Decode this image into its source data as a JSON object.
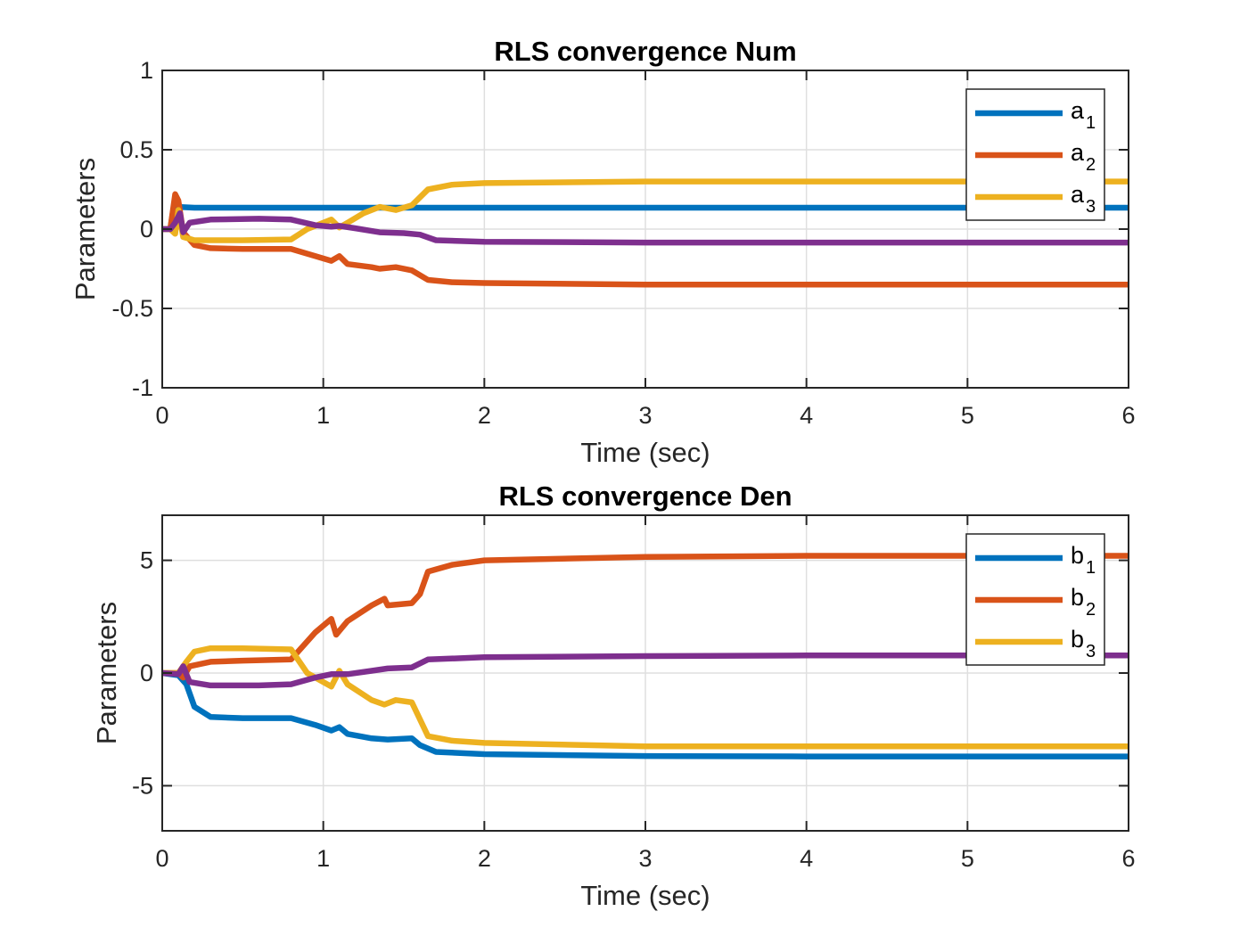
{
  "chart_data": [
    {
      "type": "line",
      "title": "RLS convergence Num",
      "xlabel": "Time (sec)",
      "ylabel": "Parameters",
      "xlim": [
        0,
        6
      ],
      "ylim": [
        -1,
        1
      ],
      "xticks": [
        "0",
        "1",
        "2",
        "3",
        "4",
        "5",
        "6"
      ],
      "yticks": [
        "-1",
        "-0.5",
        "0",
        "0.5",
        "1"
      ],
      "grid": true,
      "legend_position": "top-right",
      "series": [
        {
          "name": "a1",
          "legend_base": "a",
          "legend_sub": "1",
          "color": "#0072BD",
          "points": [
            [
              0,
              0
            ],
            [
              0.05,
              0
            ],
            [
              0.07,
              0.13
            ],
            [
              0.1,
              0.14
            ],
            [
              0.2,
              0.135
            ],
            [
              0.5,
              0.135
            ],
            [
              1,
              0.135
            ],
            [
              2,
              0.135
            ],
            [
              3,
              0.135
            ],
            [
              4,
              0.135
            ],
            [
              5,
              0.135
            ],
            [
              6,
              0.135
            ]
          ]
        },
        {
          "name": "a2",
          "legend_base": "a",
          "legend_sub": "2",
          "color": "#D95319",
          "points": [
            [
              0,
              0
            ],
            [
              0.05,
              0
            ],
            [
              0.08,
              0.22
            ],
            [
              0.1,
              0.18
            ],
            [
              0.13,
              -0.02
            ],
            [
              0.2,
              -0.1
            ],
            [
              0.3,
              -0.12
            ],
            [
              0.5,
              -0.125
            ],
            [
              0.8,
              -0.125
            ],
            [
              0.95,
              -0.17
            ],
            [
              1.05,
              -0.2
            ],
            [
              1.1,
              -0.17
            ],
            [
              1.15,
              -0.22
            ],
            [
              1.3,
              -0.24
            ],
            [
              1.35,
              -0.25
            ],
            [
              1.45,
              -0.24
            ],
            [
              1.55,
              -0.26
            ],
            [
              1.65,
              -0.32
            ],
            [
              1.8,
              -0.335
            ],
            [
              2,
              -0.34
            ],
            [
              3,
              -0.35
            ],
            [
              4,
              -0.35
            ],
            [
              5,
              -0.35
            ],
            [
              6,
              -0.35
            ]
          ]
        },
        {
          "name": "a3",
          "legend_base": "a",
          "legend_sub": "3",
          "color": "#EDB120",
          "points": [
            [
              0,
              0
            ],
            [
              0.05,
              0
            ],
            [
              0.08,
              -0.03
            ],
            [
              0.1,
              0.12
            ],
            [
              0.13,
              -0.05
            ],
            [
              0.2,
              -0.07
            ],
            [
              0.5,
              -0.07
            ],
            [
              0.8,
              -0.065
            ],
            [
              0.9,
              0
            ],
            [
              1.05,
              0.06
            ],
            [
              1.1,
              0.01
            ],
            [
              1.15,
              0.04
            ],
            [
              1.25,
              0.1
            ],
            [
              1.35,
              0.14
            ],
            [
              1.45,
              0.12
            ],
            [
              1.55,
              0.15
            ],
            [
              1.65,
              0.25
            ],
            [
              1.8,
              0.28
            ],
            [
              2,
              0.29
            ],
            [
              3,
              0.3
            ],
            [
              4,
              0.3
            ],
            [
              5,
              0.3
            ],
            [
              6,
              0.3
            ]
          ]
        },
        {
          "color": "#7E2F8E",
          "points": [
            [
              0,
              0
            ],
            [
              0.05,
              0
            ],
            [
              0.08,
              0.04
            ],
            [
              0.11,
              0.1
            ],
            [
              0.13,
              -0.02
            ],
            [
              0.17,
              0.04
            ],
            [
              0.3,
              0.06
            ],
            [
              0.6,
              0.065
            ],
            [
              0.8,
              0.06
            ],
            [
              0.95,
              0.025
            ],
            [
              1.05,
              0.015
            ],
            [
              1.1,
              0.02
            ],
            [
              1.2,
              0.005
            ],
            [
              1.35,
              -0.02
            ],
            [
              1.5,
              -0.025
            ],
            [
              1.6,
              -0.035
            ],
            [
              1.7,
              -0.07
            ],
            [
              2,
              -0.08
            ],
            [
              3,
              -0.085
            ],
            [
              4,
              -0.085
            ],
            [
              5,
              -0.085
            ],
            [
              6,
              -0.085
            ]
          ]
        }
      ]
    },
    {
      "type": "line",
      "title": "RLS convergence Den",
      "xlabel": "Time (sec)",
      "ylabel": "Parameters",
      "xlim": [
        0,
        6
      ],
      "ylim": [
        -7,
        7
      ],
      "xticks": [
        "0",
        "1",
        "2",
        "3",
        "4",
        "5",
        "6"
      ],
      "yticks": [
        "-5",
        "0",
        "5"
      ],
      "ytick_values": [
        -5,
        0,
        5
      ],
      "grid": true,
      "legend_position": "top-right",
      "series": [
        {
          "name": "b1",
          "legend_base": "b",
          "legend_sub": "1",
          "color": "#0072BD",
          "points": [
            [
              0,
              0
            ],
            [
              0.1,
              -0.1
            ],
            [
              0.15,
              -0.5
            ],
            [
              0.2,
              -1.5
            ],
            [
              0.3,
              -1.95
            ],
            [
              0.5,
              -2.0
            ],
            [
              0.8,
              -2.0
            ],
            [
              0.95,
              -2.3
            ],
            [
              1.05,
              -2.55
            ],
            [
              1.1,
              -2.4
            ],
            [
              1.15,
              -2.7
            ],
            [
              1.3,
              -2.9
            ],
            [
              1.4,
              -2.95
            ],
            [
              1.55,
              -2.9
            ],
            [
              1.6,
              -3.2
            ],
            [
              1.7,
              -3.5
            ],
            [
              2,
              -3.6
            ],
            [
              3,
              -3.68
            ],
            [
              4,
              -3.7
            ],
            [
              5,
              -3.7
            ],
            [
              6,
              -3.7
            ]
          ]
        },
        {
          "name": "b2",
          "legend_base": "b",
          "legend_sub": "2",
          "color": "#D95319",
          "points": [
            [
              0,
              0
            ],
            [
              0.1,
              0
            ],
            [
              0.13,
              -0.2
            ],
            [
              0.17,
              0.3
            ],
            [
              0.3,
              0.5
            ],
            [
              0.5,
              0.55
            ],
            [
              0.8,
              0.6
            ],
            [
              0.95,
              1.8
            ],
            [
              1.05,
              2.4
            ],
            [
              1.08,
              1.7
            ],
            [
              1.15,
              2.3
            ],
            [
              1.3,
              3.0
            ],
            [
              1.38,
              3.3
            ],
            [
              1.4,
              3.0
            ],
            [
              1.55,
              3.1
            ],
            [
              1.6,
              3.5
            ],
            [
              1.65,
              4.5
            ],
            [
              1.8,
              4.8
            ],
            [
              2,
              5.0
            ],
            [
              3,
              5.15
            ],
            [
              4,
              5.2
            ],
            [
              5,
              5.2
            ],
            [
              6,
              5.2
            ]
          ]
        },
        {
          "name": "b3",
          "legend_base": "b",
          "legend_sub": "3",
          "color": "#EDB120",
          "points": [
            [
              0,
              0
            ],
            [
              0.1,
              0
            ],
            [
              0.15,
              0.5
            ],
            [
              0.2,
              0.95
            ],
            [
              0.3,
              1.1
            ],
            [
              0.5,
              1.1
            ],
            [
              0.8,
              1.05
            ],
            [
              0.9,
              0
            ],
            [
              1.05,
              -0.6
            ],
            [
              1.1,
              0.1
            ],
            [
              1.15,
              -0.5
            ],
            [
              1.3,
              -1.2
            ],
            [
              1.38,
              -1.4
            ],
            [
              1.45,
              -1.2
            ],
            [
              1.55,
              -1.3
            ],
            [
              1.65,
              -2.8
            ],
            [
              1.8,
              -3.0
            ],
            [
              2,
              -3.1
            ],
            [
              3,
              -3.25
            ],
            [
              4,
              -3.25
            ],
            [
              5,
              -3.25
            ],
            [
              6,
              -3.25
            ]
          ]
        },
        {
          "color": "#7E2F8E",
          "points": [
            [
              0,
              0
            ],
            [
              0.1,
              -0.05
            ],
            [
              0.13,
              0.3
            ],
            [
              0.17,
              -0.4
            ],
            [
              0.3,
              -0.55
            ],
            [
              0.6,
              -0.55
            ],
            [
              0.8,
              -0.5
            ],
            [
              0.95,
              -0.2
            ],
            [
              1.05,
              -0.05
            ],
            [
              1.15,
              -0.05
            ],
            [
              1.3,
              0.1
            ],
            [
              1.4,
              0.2
            ],
            [
              1.55,
              0.25
            ],
            [
              1.65,
              0.6
            ],
            [
              2,
              0.7
            ],
            [
              3,
              0.75
            ],
            [
              4,
              0.78
            ],
            [
              5,
              0.78
            ],
            [
              6,
              0.78
            ]
          ]
        }
      ]
    }
  ]
}
